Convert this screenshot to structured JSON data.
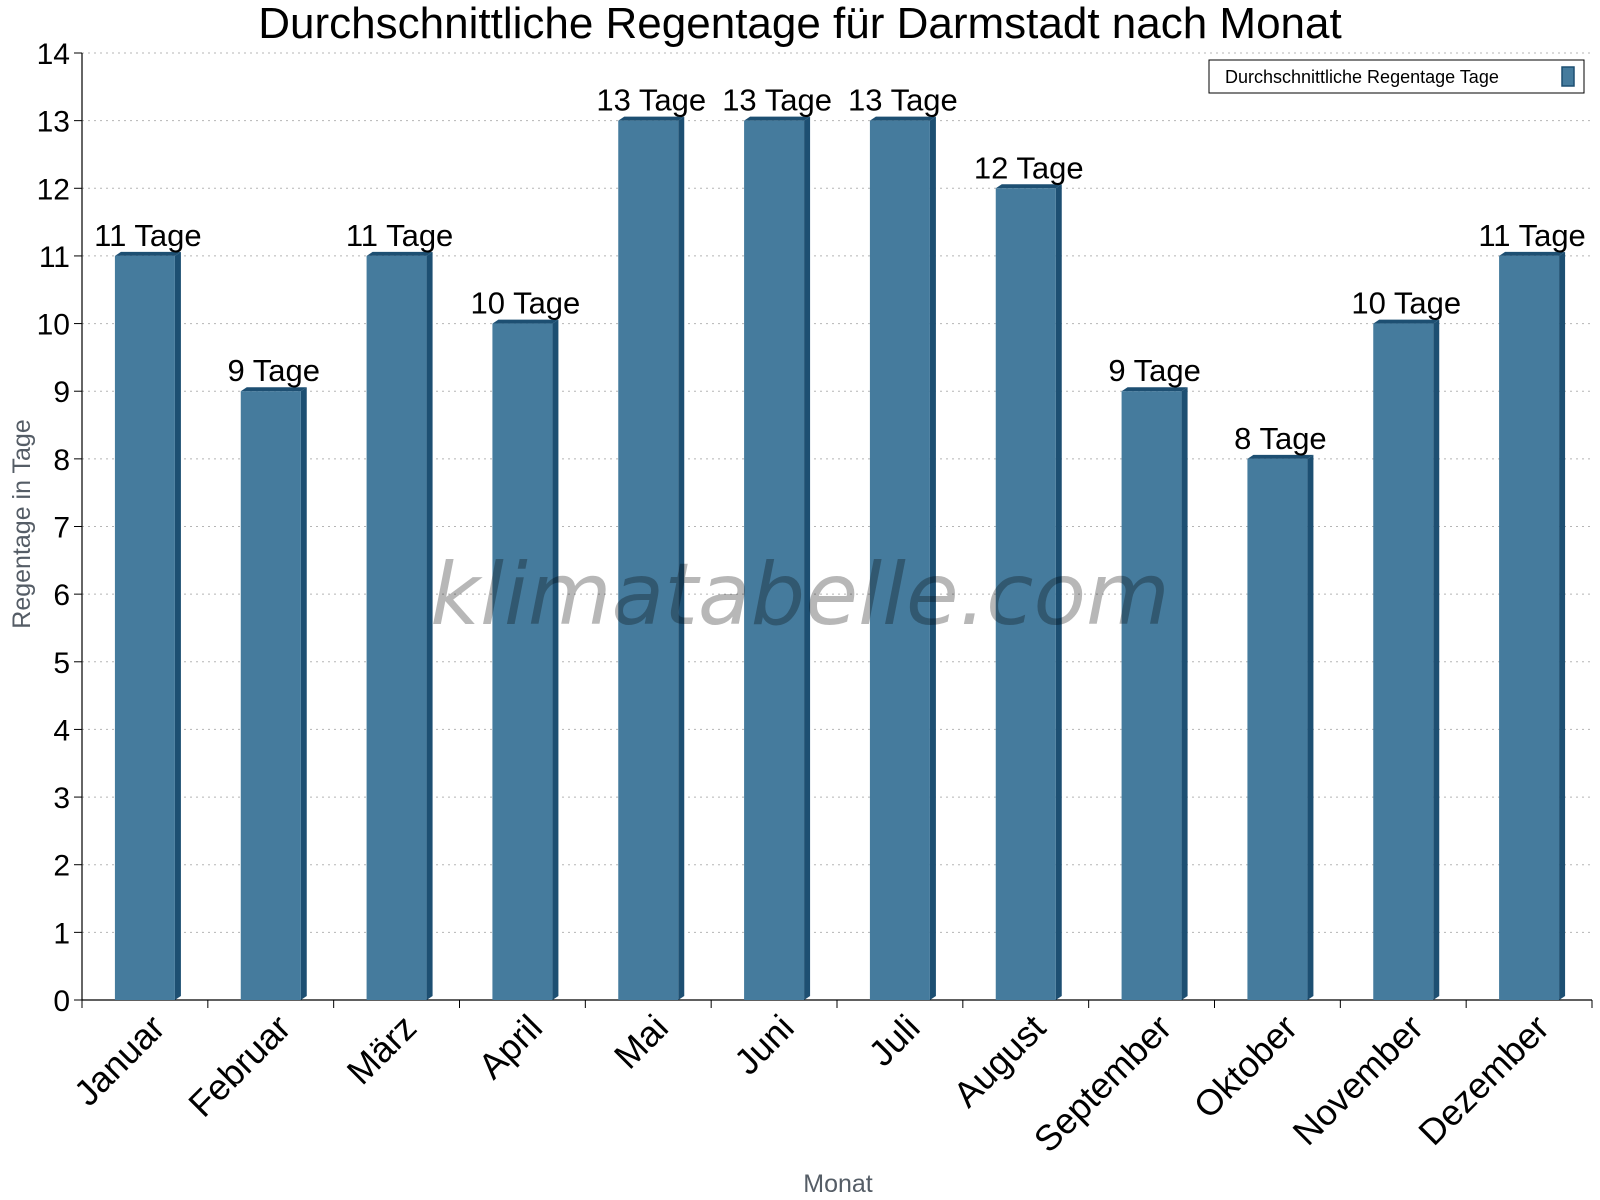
{
  "chart_data": {
    "type": "bar",
    "title": "Durchschnittliche Regentage für Darmstadt nach Monat",
    "xlabel": "Monat",
    "ylabel": "Regentage in Tage",
    "ylim": [
      0,
      14
    ],
    "yticks": [
      "0",
      "1",
      "2",
      "3",
      "4",
      "5",
      "6",
      "7",
      "8",
      "9",
      "10",
      "11",
      "12",
      "13",
      "14"
    ],
    "grid": true,
    "legend_position": "top-right",
    "categories": [
      "Januar",
      "Februar",
      "März",
      "April",
      "Mai",
      "Juni",
      "Juli",
      "August",
      "September",
      "Oktober",
      "November",
      "Dezember"
    ],
    "series": [
      {
        "name": "Durchschnittliche Regentage Tage",
        "values": [
          11,
          9,
          11,
          10,
          13,
          13,
          13,
          12,
          9,
          8,
          10,
          11
        ],
        "labels": [
          "11 Tage",
          "9 Tage",
          "11 Tage",
          "10 Tage",
          "13 Tage",
          "13 Tage",
          "13 Tage",
          "12 Tage",
          "9 Tage",
          "8 Tage",
          "10 Tage",
          "11 Tage"
        ],
        "color": "#457b9d",
        "shade_color": "#1d4f72"
      }
    ]
  },
  "watermark": "klimatabelle.com"
}
